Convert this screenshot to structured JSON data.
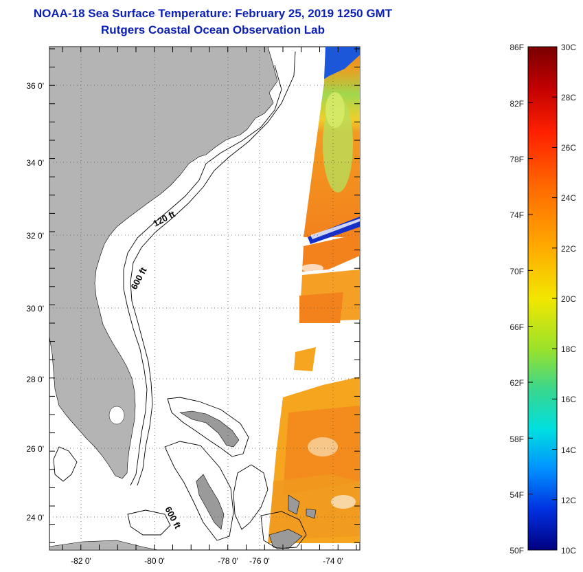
{
  "title": {
    "line1": "NOAA-18 Sea Surface Temperature:  February 25, 2019 1250 GMT",
    "line2": "Rutgers Coastal Ocean Observation Lab"
  },
  "map": {
    "lat_labels": [
      "36 0'",
      "34 0'",
      "32 0'",
      "30 0'",
      "28 0'",
      "26 0'",
      "24 0'"
    ],
    "lon_labels": [
      "-82 0'",
      "-80 0'",
      "-78 0'",
      "-76 0'",
      "-74 0'"
    ],
    "contour_labels": {
      "shelf_120": "120 ft",
      "shelf_600": "600 ft",
      "bahamas_600": "600 ft"
    }
  },
  "colorbar": {
    "fahrenheit_labels": [
      "86F",
      "82F",
      "78F",
      "74F",
      "70F",
      "66F",
      "62F",
      "58F",
      "54F",
      "50F"
    ],
    "celsius_labels": [
      "30C",
      "28C",
      "26C",
      "24C",
      "22C",
      "20C",
      "18C",
      "16C",
      "14C",
      "12C",
      "10C"
    ]
  },
  "colors": {
    "title": "#0b1fb4",
    "land": "#b4b4b4",
    "sst_orange": "#f3821d",
    "sst_yellow": "#f0d21e",
    "sst_green": "#8ed84a",
    "sst_blue": "#1530c8"
  }
}
